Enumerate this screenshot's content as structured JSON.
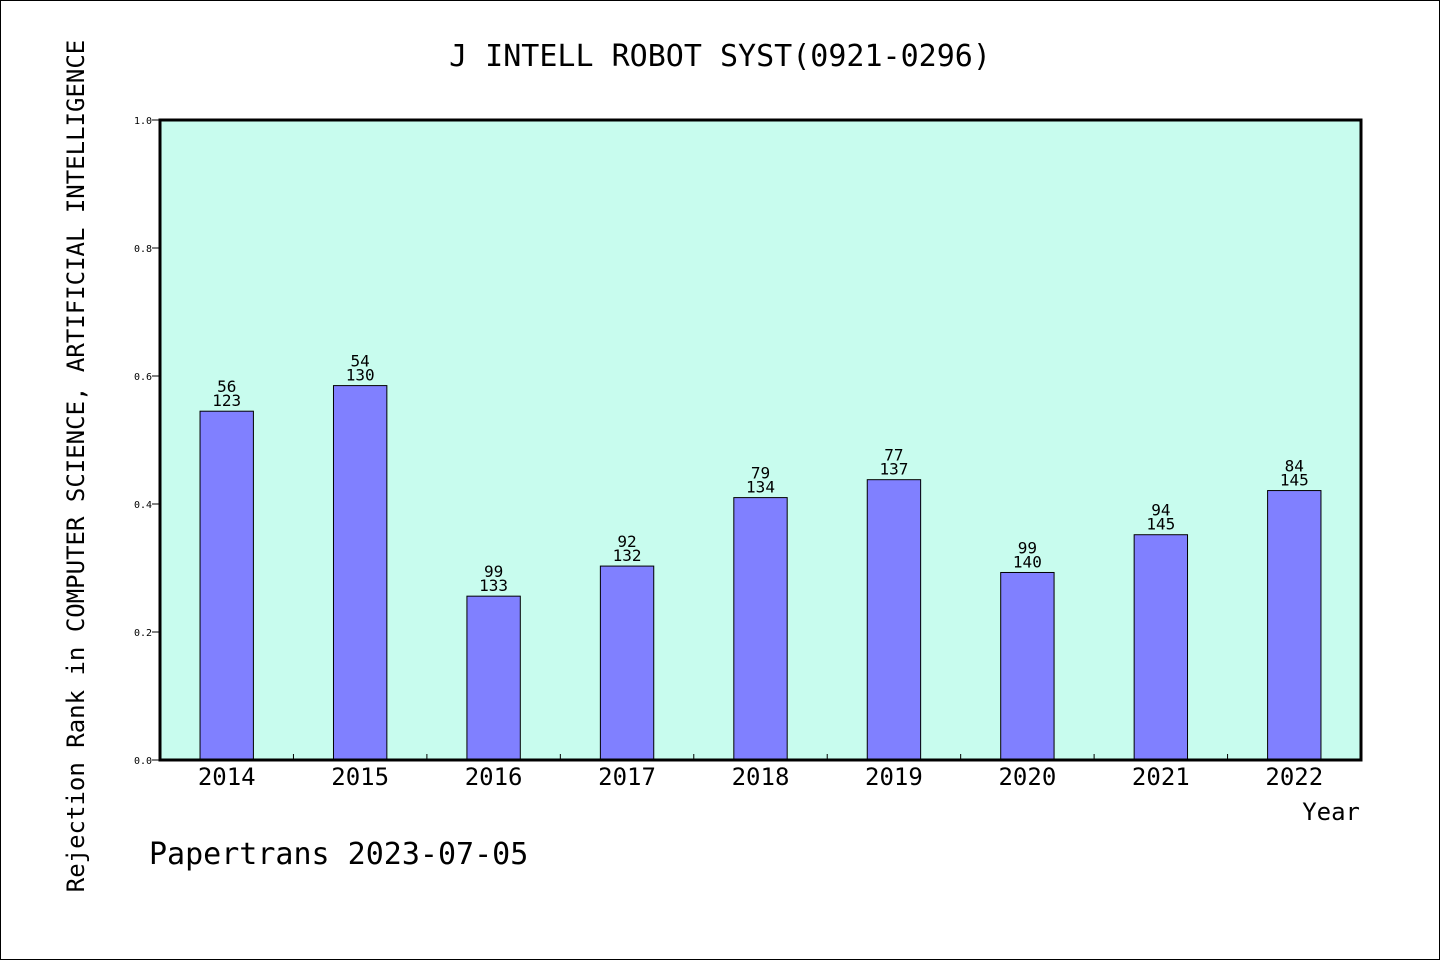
{
  "chart_data": {
    "type": "bar",
    "title": "J INTELL ROBOT SYST(0921-0296)",
    "xlabel": "Year",
    "ylabel": "Rejection Rank in COMPUTER SCIENCE, ARTIFICIAL INTELLIGENCE",
    "ylim": [
      0,
      1.0
    ],
    "yticks": [
      "0.0",
      "0.2",
      "0.4",
      "0.6",
      "0.8",
      "1.0"
    ],
    "categories": [
      "2014",
      "2015",
      "2016",
      "2017",
      "2018",
      "2019",
      "2020",
      "2021",
      "2022"
    ],
    "values": [
      0.545,
      0.585,
      0.256,
      0.303,
      0.41,
      0.438,
      0.293,
      0.352,
      0.421
    ],
    "label_top": [
      "56",
      "54",
      "99",
      "92",
      "79",
      "77",
      "99",
      "94",
      "84"
    ],
    "label_bottom": [
      "123",
      "130",
      "133",
      "132",
      "134",
      "137",
      "140",
      "145",
      "145"
    ],
    "colors": {
      "plot_bg": "#c8fcee",
      "bar": "#8080ff",
      "axis": "#000000"
    }
  },
  "footer": "Papertrans 2023-07-05"
}
